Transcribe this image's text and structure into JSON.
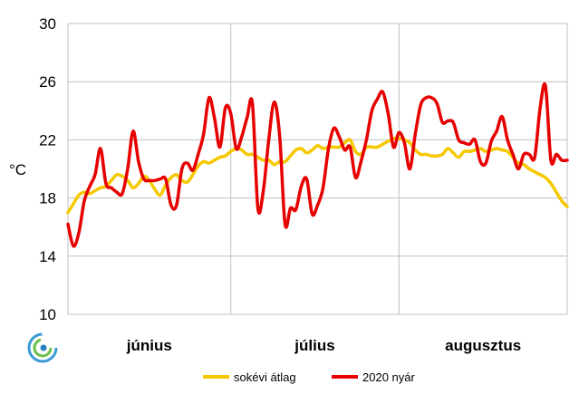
{
  "chart_data": {
    "type": "line",
    "xlabel": "",
    "ylabel": "°C",
    "ylim": [
      10,
      30
    ],
    "yticks": [
      10,
      14,
      18,
      22,
      26,
      30
    ],
    "x_range_days": [
      0,
      92
    ],
    "month_labels": [
      "június",
      "július",
      "augusztus"
    ],
    "month_label_days": [
      15,
      45.5,
      76.5
    ],
    "month_boundaries_days": [
      30,
      61
    ],
    "grid": true,
    "legend_position": "bottom",
    "colors": {
      "avg": "#f5c800",
      "year2020": "#e60000",
      "grid": "#c0c0c0"
    },
    "series": [
      {
        "name": "sokévi átlag",
        "x": [
          0,
          1,
          2,
          3,
          4,
          5,
          6,
          7,
          8,
          9,
          10,
          11,
          12,
          13,
          14,
          15,
          16,
          17,
          18,
          19,
          20,
          21,
          22,
          23,
          24,
          25,
          26,
          27,
          28,
          29,
          30,
          31,
          32,
          33,
          34,
          35,
          36,
          37,
          38,
          39,
          40,
          41,
          42,
          43,
          44,
          45,
          46,
          47,
          48,
          49,
          50,
          51,
          52,
          53,
          54,
          55,
          56,
          57,
          58,
          59,
          60,
          61,
          62,
          63,
          64,
          65,
          66,
          67,
          68,
          69,
          70,
          71,
          72,
          73,
          74,
          75,
          76,
          77,
          78,
          79,
          80,
          81,
          82,
          83,
          84,
          85,
          86,
          87,
          88,
          89,
          90,
          91,
          92
        ],
        "values": [
          17.0,
          17.6,
          18.2,
          18.4,
          18.3,
          18.5,
          18.7,
          18.8,
          19.2,
          19.6,
          19.5,
          19.2,
          18.7,
          19.0,
          19.5,
          19.2,
          18.6,
          18.2,
          18.9,
          19.4,
          19.6,
          19.2,
          19.1,
          19.6,
          20.2,
          20.5,
          20.4,
          20.6,
          20.8,
          20.9,
          21.2,
          21.4,
          21.3,
          21.0,
          21.0,
          20.8,
          20.6,
          20.6,
          20.3,
          20.5,
          20.5,
          20.9,
          21.3,
          21.4,
          21.1,
          21.3,
          21.6,
          21.4,
          21.5,
          21.5,
          21.5,
          21.8,
          22.0,
          21.2,
          21.0,
          21.5,
          21.5,
          21.5,
          21.7,
          21.9,
          22.1,
          22.1,
          22.0,
          21.8,
          21.3,
          21.0,
          21.0,
          20.9,
          20.9,
          21.0,
          21.4,
          21.1,
          20.8,
          21.2,
          21.2,
          21.3,
          21.4,
          21.2,
          21.3,
          21.4,
          21.3,
          21.2,
          20.8,
          20.4,
          20.3,
          20.0,
          19.8,
          19.6,
          19.4,
          19.0,
          18.4,
          17.8,
          17.4
        ]
      },
      {
        "name": "2020 nyár",
        "x": [
          0,
          1,
          2,
          3,
          4,
          5,
          6,
          7,
          8,
          9,
          10,
          11,
          12,
          13,
          14,
          15,
          16,
          17,
          18,
          19,
          20,
          21,
          22,
          23,
          24,
          25,
          26,
          27,
          28,
          29,
          30,
          31,
          32,
          33,
          34,
          35,
          36,
          37,
          38,
          39,
          40,
          41,
          42,
          43,
          44,
          45,
          46,
          47,
          48,
          49,
          50,
          51,
          52,
          53,
          54,
          55,
          56,
          57,
          58,
          59,
          60,
          61,
          62,
          63,
          64,
          65,
          66,
          67,
          68,
          69,
          70,
          71,
          72,
          73,
          74,
          75,
          76,
          77,
          78,
          79,
          80,
          81,
          82,
          83,
          84,
          85,
          86,
          87,
          88,
          89,
          90,
          91,
          92
        ],
        "values": [
          16.2,
          14.7,
          15.6,
          17.8,
          18.8,
          19.6,
          21.4,
          19.0,
          18.7,
          18.4,
          18.3,
          20.0,
          22.6,
          20.5,
          19.3,
          19.2,
          19.2,
          19.3,
          19.3,
          17.5,
          17.5,
          20.0,
          20.4,
          19.9,
          21.0,
          22.4,
          24.9,
          23.5,
          21.5,
          24.2,
          23.8,
          21.4,
          22.2,
          23.5,
          24.5,
          17.3,
          18.5,
          22.0,
          24.6,
          22.3,
          16.2,
          17.3,
          17.2,
          18.8,
          19.3,
          16.9,
          17.5,
          18.7,
          21.4,
          22.8,
          22.2,
          21.3,
          21.5,
          19.4,
          20.5,
          22.0,
          24.0,
          24.8,
          25.3,
          23.8,
          21.5,
          22.5,
          21.8,
          20.0,
          22.4,
          24.4,
          24.9,
          24.9,
          24.5,
          23.2,
          23.3,
          23.2,
          22.0,
          21.8,
          21.7,
          22.0,
          20.5,
          20.4,
          21.9,
          22.6,
          23.6,
          22.0,
          21.0,
          20.0,
          21.0,
          21.0,
          20.8,
          24.2,
          25.7,
          20.6,
          21.0,
          20.6,
          20.6
        ]
      }
    ],
    "legend": [
      {
        "label": "sokévi átlag",
        "color": "#f5c800"
      },
      {
        "label": "2020 nyár",
        "color": "#e60000"
      }
    ]
  }
}
